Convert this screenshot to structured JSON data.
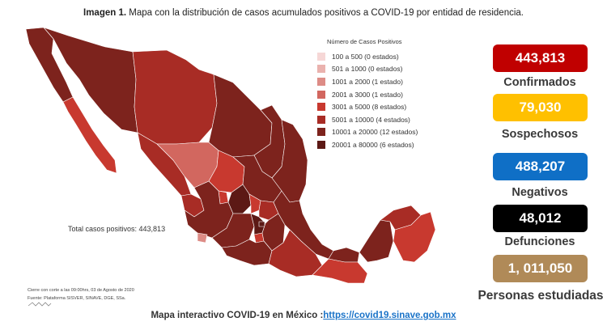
{
  "caption": {
    "bold": "Imagen 1.",
    "text": " Mapa con la distribución de casos acumulados positivos a COVID-19 por entidad de residencia."
  },
  "legend": {
    "title": "Número de Casos Positivos",
    "items": [
      {
        "label": "100 a    500  (0 estados)",
        "color": "#f6d7d6"
      },
      {
        "label": "501 a   1000  (0 estados)",
        "color": "#eab2ae"
      },
      {
        "label": "1001 a  2000  (1 estado)",
        "color": "#dd8c86"
      },
      {
        "label": "2001 a  3000  (1 estado)",
        "color": "#d2675f"
      },
      {
        "label": "3001 a  5000  (8 estados)",
        "color": "#c8392f"
      },
      {
        "label": "5001 a 10000  (4 estados)",
        "color": "#a82c25"
      },
      {
        "label": "10001 a 20000  (12 estados)",
        "color": "#7d231d"
      },
      {
        "label": "20001 a 80000  (6 estados)",
        "color": "#5c1915"
      }
    ]
  },
  "total_label": "Total casos positivos: 443,813",
  "stats": [
    {
      "value": "443,813",
      "label": "Confirmados",
      "color": "#c00000",
      "text_color": "#ffffff"
    },
    {
      "value": "79,030",
      "label": "Sospechosos",
      "color": "#ffc000",
      "text_color": "#ffffff"
    },
    {
      "value": "488,207",
      "label": "Negativos",
      "color": "#0f6fc6",
      "text_color": "#ffffff"
    },
    {
      "value": "48,012",
      "label": "Defunciones",
      "color": "#000000",
      "text_color": "#ffffff"
    },
    {
      "value": "1, 011,050",
      "label": "Personas estudiadas",
      "color": "#b08a58",
      "text_color": "#ffffff"
    }
  ],
  "footnotes": {
    "cutoff": "Cierre con corte a las 09:00hrs, 03 de Agosto de 2020",
    "source": "Fuente: Plataforma SISVER, SINAVE, DGE, SSa."
  },
  "bottom": {
    "prefix": "Mapa interactivo COVID-19 en México :",
    "link": "https://covid19.sinave.gob.mx"
  }
}
